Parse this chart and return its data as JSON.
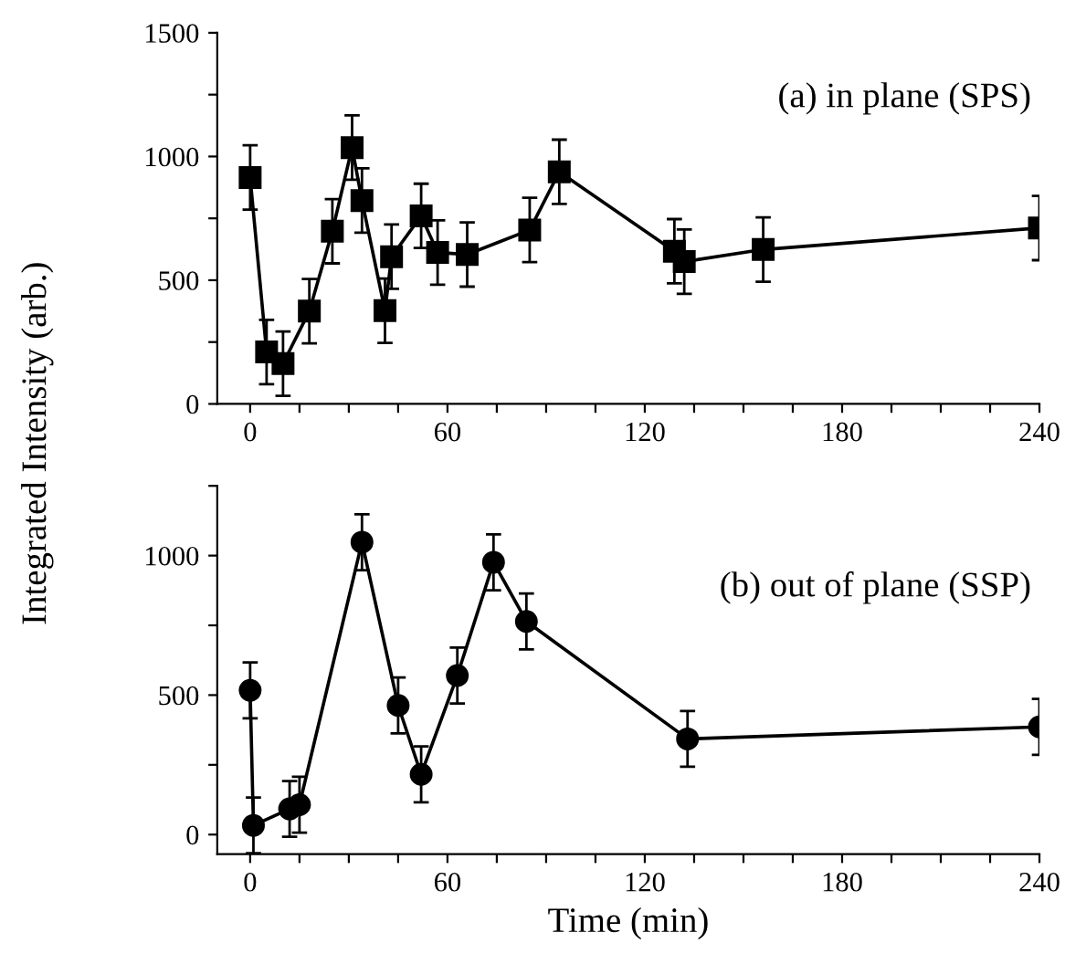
{
  "chart_data": [
    {
      "type": "line",
      "ylabel": "Integrated Intensity (arb.)",
      "annotations": [
        "(a) in plane (SPS)"
      ],
      "x": [
        0,
        5,
        10,
        18,
        25,
        31,
        34,
        41,
        43,
        52,
        57,
        66,
        85,
        94,
        129,
        132,
        156,
        240
      ],
      "series": [
        {
          "color": "#000000",
          "values": [
            915,
            210,
            163,
            375,
            698,
            1036,
            822,
            377,
            595,
            760,
            612,
            604,
            703,
            938,
            617,
            575,
            624,
            711
          ],
          "errors": [
            130,
            130,
            130,
            130,
            130,
            130,
            130,
            130,
            130,
            130,
            130,
            130,
            130,
            130,
            130,
            130,
            130,
            130
          ]
        }
      ],
      "marker": "square",
      "line_style": "solid",
      "grid": false,
      "legend": false,
      "xlim": [
        -10,
        240
      ],
      "xticks": [
        0,
        {
          "value": 15,
          "label": null
        },
        {
          "value": 30,
          "label": null
        },
        {
          "value": 45,
          "label": null
        },
        60,
        {
          "value": 75,
          "label": null
        },
        {
          "value": 90,
          "label": null
        },
        {
          "value": 105,
          "label": null
        },
        120,
        {
          "value": 135,
          "label": null
        },
        {
          "value": 150,
          "label": null
        },
        {
          "value": 165,
          "label": null
        },
        180,
        {
          "value": 195,
          "label": null
        },
        {
          "value": 210,
          "label": null
        },
        {
          "value": 225,
          "label": null
        },
        240
      ],
      "ylim": [
        0,
        1500
      ],
      "yticks": [
        0,
        {
          "value": 250,
          "label": null
        },
        500,
        {
          "value": 750,
          "label": null
        },
        1000,
        {
          "value": 1250,
          "label": null
        },
        1500
      ]
    },
    {
      "type": "line",
      "xlabel": "Time (min)",
      "annotations": [
        "(b) out of plane (SSP)"
      ],
      "x": [
        0,
        1,
        12,
        15,
        34,
        45,
        52,
        63,
        74,
        84,
        133,
        240
      ],
      "series": [
        {
          "color": "#000000",
          "values": [
            517,
            33,
            92,
            107,
            1048,
            463,
            216,
            570,
            976,
            764,
            343,
            386
          ],
          "errors": [
            100,
            100,
            100,
            100,
            100,
            100,
            100,
            100,
            100,
            100,
            100,
            100
          ]
        }
      ],
      "marker": "circle",
      "line_style": "solid",
      "grid": false,
      "legend": false,
      "xlim": [
        -10,
        240
      ],
      "xticks": [
        0,
        {
          "value": 15,
          "label": null
        },
        {
          "value": 30,
          "label": null
        },
        {
          "value": 45,
          "label": null
        },
        60,
        {
          "value": 75,
          "label": null
        },
        {
          "value": 90,
          "label": null
        },
        {
          "value": 105,
          "label": null
        },
        120,
        {
          "value": 135,
          "label": null
        },
        {
          "value": 150,
          "label": null
        },
        {
          "value": 165,
          "label": null
        },
        180,
        {
          "value": 195,
          "label": null
        },
        {
          "value": 210,
          "label": null
        },
        {
          "value": 225,
          "label": null
        },
        240
      ],
      "ylim": [
        -70,
        1250
      ],
      "yticks": [
        0,
        {
          "value": 250,
          "label": null
        },
        500,
        {
          "value": 750,
          "label": null
        },
        1000,
        {
          "value": 1250,
          "label": null
        }
      ]
    }
  ]
}
